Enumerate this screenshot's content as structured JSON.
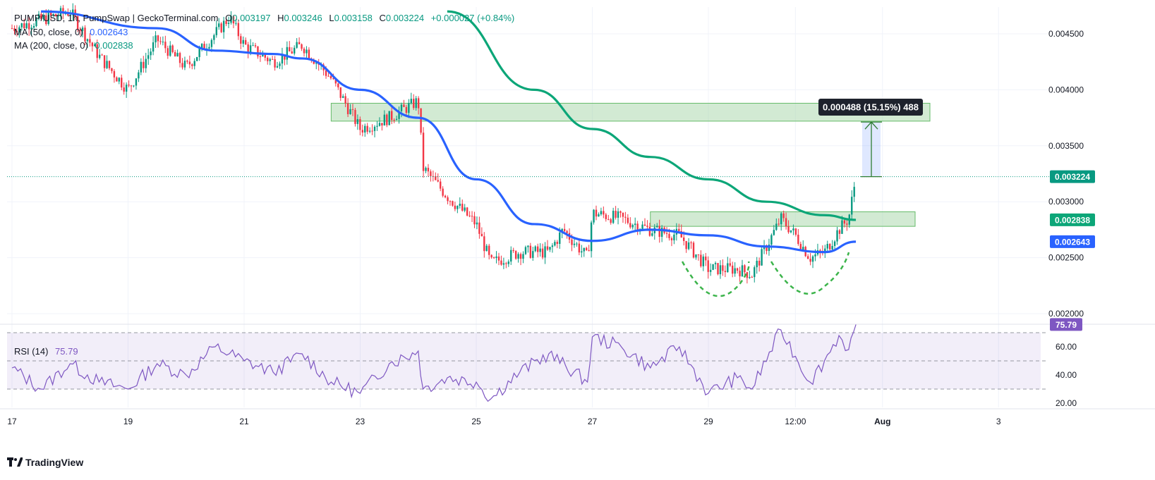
{
  "header": {
    "symbol": "PUMP/USD, 1h, PumpSwap | GeckoTerminal.com",
    "o_label": "O",
    "o_value": "0.003197",
    "h_label": "H",
    "h_value": "0.003246",
    "l_label": "L",
    "l_value": "0.003158",
    "c_label": "C",
    "c_value": "0.003224",
    "change": "+0.000027 (+0.84%)",
    "ma50_label": "MA (50, close, 0)",
    "ma50_value": "0.002643",
    "ma200_label": "MA (200, close, 0)",
    "ma200_value": "0.002838",
    "rsi_label": "RSI (14)",
    "rsi_value": "75.79"
  },
  "price_axis": {
    "ticks": [
      "0.004500",
      "0.004000",
      "0.003500",
      "0.003000",
      "0.002500",
      "0.002000"
    ],
    "current_price": "0.003224",
    "ma200_price": "0.002838",
    "ma50_price": "0.002643"
  },
  "rsi_axis": {
    "ticks": [
      "60.00",
      "40.00",
      "20.00"
    ],
    "current": "75.79"
  },
  "time_axis": {
    "labels": [
      "17",
      "19",
      "21",
      "23",
      "25",
      "27",
      "29",
      "12:00",
      "Aug",
      "3"
    ]
  },
  "measure": {
    "label": "0.000488 (15.15%) 488"
  },
  "footer": {
    "brand": "TradingView"
  },
  "colors": {
    "up": "#089981",
    "down": "#f23645",
    "ma50": "#2962ff",
    "ma200": "#0ca678",
    "zone": "#a5d6a7",
    "rsi": "#7e57c2",
    "measure": "#2962ff"
  },
  "chart_data": {
    "type": "candlestick",
    "timeframe": "1h",
    "ylim": [
      0.00195,
      0.00475
    ],
    "x_days": [
      "17",
      "19",
      "21",
      "23",
      "25",
      "27",
      "29",
      "30 12:00",
      "Aug 1",
      "3"
    ],
    "price_path": [
      {
        "t": "Jul 17 00:00",
        "price": 0.00455
      },
      {
        "t": "Jul 18 00:00",
        "price": 0.0047
      },
      {
        "t": "Jul 18 12:00",
        "price": 0.0043
      },
      {
        "t": "Jul 19 00:00",
        "price": 0.004
      },
      {
        "t": "Jul 19 12:00",
        "price": 0.00445
      },
      {
        "t": "Jul 20 00:00",
        "price": 0.0042
      },
      {
        "t": "Jul 20 12:00",
        "price": 0.0045
      },
      {
        "t": "Jul 20 18:00",
        "price": 0.00465
      },
      {
        "t": "Jul 21 00:00",
        "price": 0.0044
      },
      {
        "t": "Jul 21 12:00",
        "price": 0.00425
      },
      {
        "t": "Jul 22 00:00",
        "price": 0.0044
      },
      {
        "t": "Jul 22 12:00",
        "price": 0.0041
      },
      {
        "t": "Jul 23 00:00",
        "price": 0.00365
      },
      {
        "t": "Jul 23 12:00",
        "price": 0.00375
      },
      {
        "t": "Jul 24 00:00",
        "price": 0.0039
      },
      {
        "t": "Jul 24 02:00",
        "price": 0.0033
      },
      {
        "t": "Jul 24 12:00",
        "price": 0.00305
      },
      {
        "t": "Jul 25 00:00",
        "price": 0.0028
      },
      {
        "t": "Jul 25 06:00",
        "price": 0.00245
      },
      {
        "t": "Jul 25 18:00",
        "price": 0.00255
      },
      {
        "t": "Jul 26 06:00",
        "price": 0.00255
      },
      {
        "t": "Jul 26 12:00",
        "price": 0.00275
      },
      {
        "t": "Jul 26 22:00",
        "price": 0.0025
      },
      {
        "t": "Jul 27 00:00",
        "price": 0.0029
      },
      {
        "t": "Jul 27 12:00",
        "price": 0.00285
      },
      {
        "t": "Jul 28 00:00",
        "price": 0.00275
      },
      {
        "t": "Jul 28 12:00",
        "price": 0.0027
      },
      {
        "t": "Jul 29 00:00",
        "price": 0.0024
      },
      {
        "t": "Jul 29 12:00",
        "price": 0.0024
      },
      {
        "t": "Jul 29 18:00",
        "price": 0.00235
      },
      {
        "t": "Jul 30 00:00",
        "price": 0.0026
      },
      {
        "t": "Jul 30 06:00",
        "price": 0.00285
      },
      {
        "t": "Jul 30 12:00",
        "price": 0.0027
      },
      {
        "t": "Jul 30 18:00",
        "price": 0.0025
      },
      {
        "t": "Jul 31 00:00",
        "price": 0.00255
      },
      {
        "t": "Jul 31 06:00",
        "price": 0.00275
      },
      {
        "t": "Jul 31 10:00",
        "price": 0.00285
      },
      {
        "t": "Jul 31 13:00",
        "price": 0.00322
      }
    ],
    "ma50": [
      {
        "t": "Jul 17 12:00",
        "price": 0.0047
      },
      {
        "t": "Jul 19 12:00",
        "price": 0.00455
      },
      {
        "t": "Jul 20 12:00",
        "price": 0.00435
      },
      {
        "t": "Jul 21 12:00",
        "price": 0.00432
      },
      {
        "t": "Jul 22 00:00",
        "price": 0.00428
      },
      {
        "t": "Jul 23 00:00",
        "price": 0.004
      },
      {
        "t": "Jul 24 00:00",
        "price": 0.00375
      },
      {
        "t": "Jul 25 00:00",
        "price": 0.0032
      },
      {
        "t": "Jul 26 00:00",
        "price": 0.0028
      },
      {
        "t": "Jul 27 00:00",
        "price": 0.00265
      },
      {
        "t": "Jul 28 00:00",
        "price": 0.00275
      },
      {
        "t": "Jul 29 00:00",
        "price": 0.0027
      },
      {
        "t": "Jul 30 00:00",
        "price": 0.0026
      },
      {
        "t": "Jul 31 00:00",
        "price": 0.00255
      },
      {
        "t": "Jul 31 13:00",
        "price": 0.002643
      }
    ],
    "ma200": [
      {
        "t": "Jul 24 12:00",
        "price": 0.0047
      },
      {
        "t": "Jul 26 00:00",
        "price": 0.004
      },
      {
        "t": "Jul 27 00:00",
        "price": 0.00365
      },
      {
        "t": "Jul 28 00:00",
        "price": 0.0034
      },
      {
        "t": "Jul 29 00:00",
        "price": 0.0032
      },
      {
        "t": "Jul 30 00:00",
        "price": 0.003
      },
      {
        "t": "Jul 31 00:00",
        "price": 0.00288
      },
      {
        "t": "Jul 31 13:00",
        "price": 0.002838
      }
    ],
    "zones": [
      {
        "from": "Jul 22 12:00",
        "to": "Aug 1 00:00",
        "top": 0.00388,
        "bottom": 0.00372
      },
      {
        "from": "Jul 28 00:00",
        "to": "Aug 1 00:00",
        "top": 0.00291,
        "bottom": 0.00278
      }
    ],
    "measurement": {
      "from_price": 0.003224,
      "to_price": 0.003712,
      "change": 0.000488,
      "percent": 15.15,
      "bars": 488
    },
    "rsi": {
      "period": 14,
      "ylim": [
        15,
        80
      ],
      "levels": [
        70,
        50,
        30
      ],
      "current": 75.79,
      "path": [
        {
          "t": "Jul 17 00:00",
          "v": 45
        },
        {
          "t": "Jul 17 12:00",
          "v": 30
        },
        {
          "t": "Jul 18 00:00",
          "v": 48
        },
        {
          "t": "Jul 18 12:00",
          "v": 35
        },
        {
          "t": "Jul 19 00:00",
          "v": 30
        },
        {
          "t": "Jul 19 12:00",
          "v": 48
        },
        {
          "t": "Jul 20 00:00",
          "v": 40
        },
        {
          "t": "Jul 20 12:00",
          "v": 60
        },
        {
          "t": "Jul 21 00:00",
          "v": 50
        },
        {
          "t": "Jul 21 12:00",
          "v": 42
        },
        {
          "t": "Jul 22 00:00",
          "v": 55
        },
        {
          "t": "Jul 22 12:00",
          "v": 35
        },
        {
          "t": "Jul 23 00:00",
          "v": 27
        },
        {
          "t": "Jul 23 12:00",
          "v": 48
        },
        {
          "t": "Jul 24 00:00",
          "v": 57
        },
        {
          "t": "Jul 24 02:00",
          "v": 30
        },
        {
          "t": "Jul 24 12:00",
          "v": 38
        },
        {
          "t": "Jul 25 00:00",
          "v": 35
        },
        {
          "t": "Jul 25 06:00",
          "v": 23
        },
        {
          "t": "Jul 25 18:00",
          "v": 42
        },
        {
          "t": "Jul 26 06:00",
          "v": 55
        },
        {
          "t": "Jul 26 22:00",
          "v": 35
        },
        {
          "t": "Jul 27 00:00",
          "v": 67
        },
        {
          "t": "Jul 27 12:00",
          "v": 60
        },
        {
          "t": "Jul 28 00:00",
          "v": 45
        },
        {
          "t": "Jul 28 12:00",
          "v": 60
        },
        {
          "t": "Jul 29 00:00",
          "v": 27
        },
        {
          "t": "Jul 29 12:00",
          "v": 38
        },
        {
          "t": "Jul 29 18:00",
          "v": 30
        },
        {
          "t": "Jul 30 06:00",
          "v": 72
        },
        {
          "t": "Jul 30 18:00",
          "v": 35
        },
        {
          "t": "Jul 31 00:00",
          "v": 50
        },
        {
          "t": "Jul 31 06:00",
          "v": 68
        },
        {
          "t": "Jul 31 10:00",
          "v": 58
        },
        {
          "t": "Jul 31 13:00",
          "v": 75.79
        }
      ]
    }
  }
}
